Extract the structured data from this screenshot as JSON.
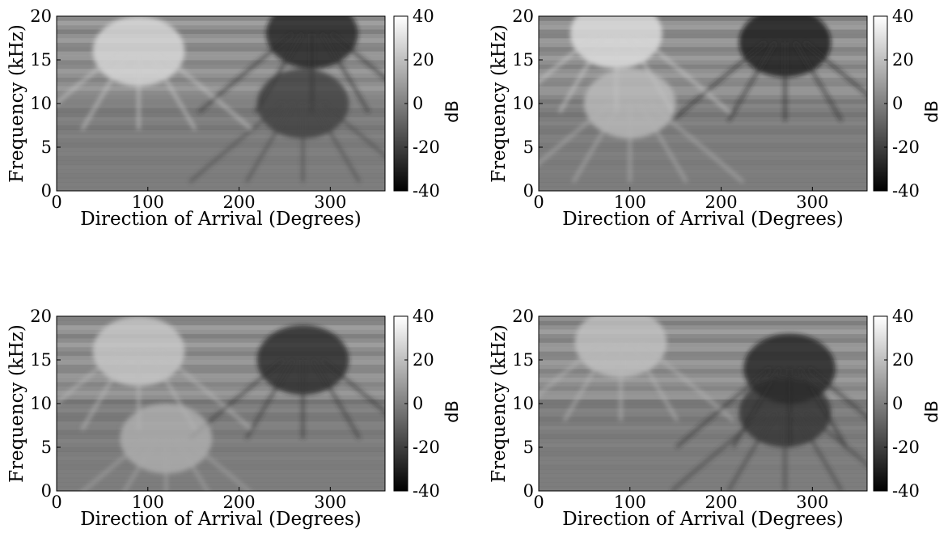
{
  "chart_data": [
    {
      "type": "heatmap",
      "xlabel": "Direction of Arrival (Degrees)",
      "ylabel": "Frequency (kHz)",
      "xlim": [
        0,
        360
      ],
      "ylim": [
        0,
        20
      ],
      "xticks": [
        "0",
        "100",
        "200",
        "300"
      ],
      "yticks": [
        "0",
        "5",
        "10",
        "15",
        "20"
      ],
      "colorbar": {
        "label": "dB",
        "range": [
          -40,
          40
        ],
        "ticks": [
          "40",
          "20",
          "0",
          "-20",
          "-40"
        ]
      },
      "colormap": [
        "#000000",
        "#ffffff"
      ],
      "features": [
        {
          "kind": "bright",
          "azimuth": 90,
          "freq": 16,
          "level": 30
        },
        {
          "kind": "dark",
          "azimuth": 280,
          "freq": 18,
          "level": -32
        },
        {
          "kind": "dark",
          "azimuth": 270,
          "freq": 10,
          "level": -22
        }
      ]
    },
    {
      "type": "heatmap",
      "xlabel": "Direction of Arrival (Degrees)",
      "ylabel": "Frequency (kHz)",
      "xlim": [
        0,
        360
      ],
      "ylim": [
        0,
        20
      ],
      "xticks": [
        "0",
        "100",
        "200",
        "300"
      ],
      "yticks": [
        "0",
        "5",
        "10",
        "15",
        "20"
      ],
      "colorbar": {
        "label": "dB",
        "range": [
          -40,
          40
        ],
        "ticks": [
          "40",
          "20",
          "0",
          "-20",
          "-40"
        ]
      },
      "colormap": [
        "#000000",
        "#ffffff"
      ],
      "features": [
        {
          "kind": "bright",
          "azimuth": 85,
          "freq": 18,
          "level": 32
        },
        {
          "kind": "dark",
          "azimuth": 270,
          "freq": 17,
          "level": -34
        },
        {
          "kind": "bright",
          "azimuth": 100,
          "freq": 10,
          "level": 20
        }
      ]
    },
    {
      "type": "heatmap",
      "xlabel": "Direction of Arrival (Degrees)",
      "ylabel": "Frequency (kHz)",
      "xlim": [
        0,
        360
      ],
      "ylim": [
        0,
        20
      ],
      "xticks": [
        "0",
        "100",
        "200",
        "300"
      ],
      "yticks": [
        "0",
        "5",
        "10",
        "15",
        "20"
      ],
      "colorbar": {
        "label": "dB",
        "range": [
          -40,
          40
        ],
        "ticks": [
          "40",
          "20",
          "0",
          "-20",
          "-40"
        ]
      },
      "colormap": [
        "#000000",
        "#ffffff"
      ],
      "features": [
        {
          "kind": "bright",
          "azimuth": 90,
          "freq": 16,
          "level": 24
        },
        {
          "kind": "dark",
          "azimuth": 270,
          "freq": 15,
          "level": -30
        },
        {
          "kind": "bright",
          "azimuth": 120,
          "freq": 6,
          "level": 16
        }
      ]
    },
    {
      "type": "heatmap",
      "xlabel": "Direction of Arrival (Degrees)",
      "ylabel": "Frequency (kHz)",
      "xlim": [
        0,
        360
      ],
      "ylim": [
        0,
        20
      ],
      "xticks": [
        "0",
        "100",
        "200",
        "300"
      ],
      "yticks": [
        "0",
        "5",
        "10",
        "15",
        "20"
      ],
      "colorbar": {
        "label": "dB",
        "range": [
          -40,
          40
        ],
        "ticks": [
          "40",
          "20",
          "0",
          "-20",
          "-40"
        ]
      },
      "colormap": [
        "#000000",
        "#ffffff"
      ],
      "features": [
        {
          "kind": "bright",
          "azimuth": 90,
          "freq": 17,
          "level": 22
        },
        {
          "kind": "dark",
          "azimuth": 275,
          "freq": 14,
          "level": -32
        },
        {
          "kind": "dark",
          "azimuth": 270,
          "freq": 9,
          "level": -26
        }
      ]
    }
  ]
}
